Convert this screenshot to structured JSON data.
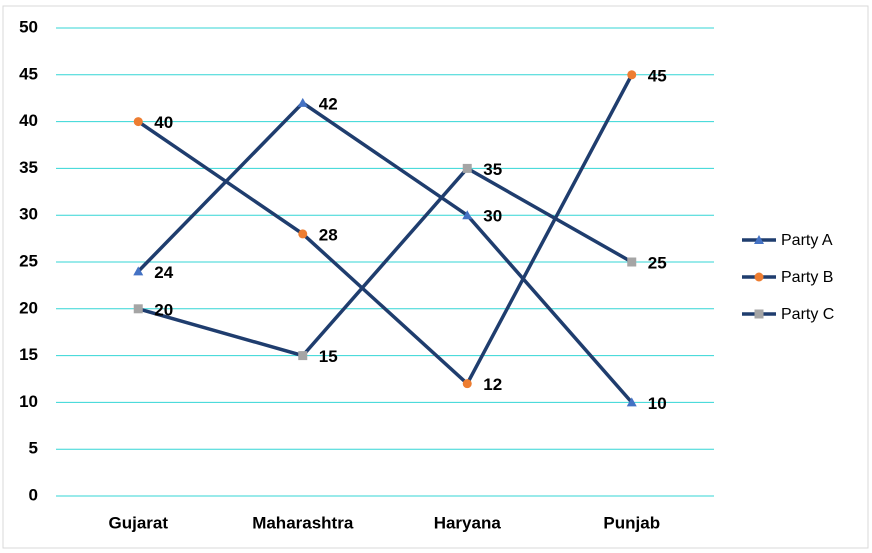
{
  "chart_data": {
    "type": "line",
    "categories": [
      "Gujarat",
      "Maharashtra",
      "Haryana",
      "Punjab"
    ],
    "line_color": "#1f3d6e",
    "series": [
      {
        "name": "Party A",
        "color": "#4472c4",
        "marker": "triangle",
        "values": [
          24,
          42,
          30,
          10
        ]
      },
      {
        "name": "Party B",
        "color": "#ed7d31",
        "marker": "circle",
        "values": [
          40,
          28,
          12,
          45
        ]
      },
      {
        "name": "Party C",
        "color": "#a5a5a5",
        "marker": "square",
        "values": [
          20,
          15,
          35,
          25
        ]
      }
    ],
    "ylim": [
      0,
      50
    ],
    "yticks": [
      0,
      5,
      10,
      15,
      20,
      25,
      30,
      35,
      40,
      45,
      50
    ],
    "grid": true,
    "grid_color": "#33d6d6",
    "legend": "right"
  }
}
